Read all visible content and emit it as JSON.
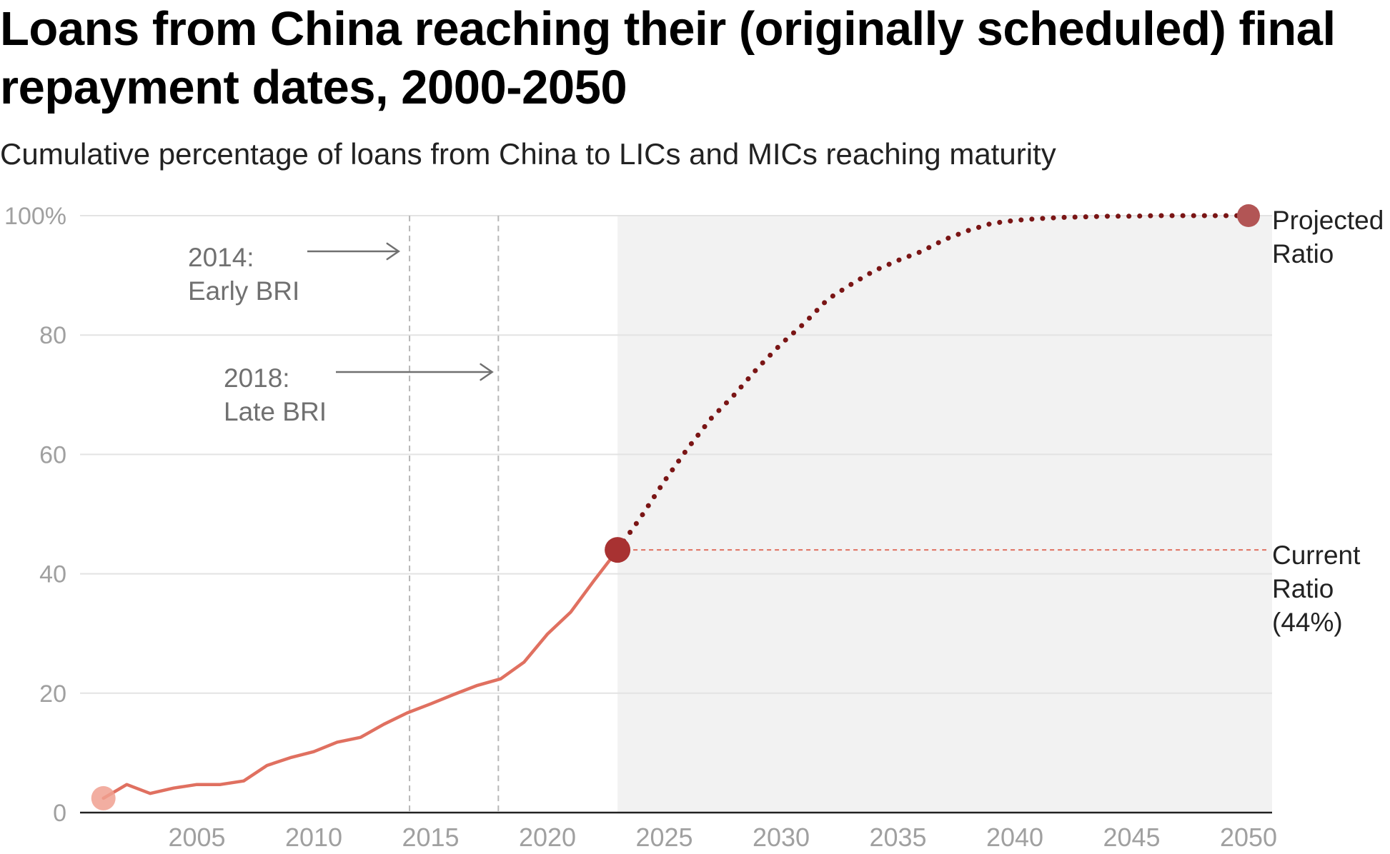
{
  "title": "Loans from China reaching their (originally scheduled) final repayment dates, 2000-2050",
  "subtitle": "Cumulative percentage of loans from China to LICs and MICs reaching maturity",
  "colors": {
    "historical": "#e07060",
    "projected": "#7a1515",
    "current_marker": "#a83232",
    "start_marker": "#f0a090",
    "end_marker": "#b25555",
    "current_ratio_line": "#e07060",
    "shade": "#f2f2f2",
    "grid": "#e3e3e3",
    "axis_text": "#a0a0a0",
    "annotation": "#707070"
  },
  "chart_data": {
    "type": "line",
    "title": "Loans from China reaching their (originally scheduled) final repayment dates, 2000-2050",
    "subtitle": "Cumulative percentage of loans from China to LICs and MICs reaching maturity",
    "xlabel": "",
    "ylabel": "",
    "xlim": [
      2000,
      2051
    ],
    "ylim": [
      0,
      100
    ],
    "x_ticks": [
      {
        "value": 2005,
        "label": "2005"
      },
      {
        "value": 2010,
        "label": "2010"
      },
      {
        "value": 2015,
        "label": "2015"
      },
      {
        "value": 2020,
        "label": "2020"
      },
      {
        "value": 2025,
        "label": "2025"
      },
      {
        "value": 2030,
        "label": "2030"
      },
      {
        "value": 2035,
        "label": "2035"
      },
      {
        "value": 2040,
        "label": "2040"
      },
      {
        "value": 2045,
        "label": "2045"
      },
      {
        "value": 2050,
        "label": "2050"
      }
    ],
    "y_ticks": [
      {
        "value": 0,
        "label": "0"
      },
      {
        "value": 20,
        "label": "20"
      },
      {
        "value": 40,
        "label": "40"
      },
      {
        "value": 60,
        "label": "60"
      },
      {
        "value": 80,
        "label": "80"
      },
      {
        "value": 100,
        "label": "100%"
      }
    ],
    "grid": true,
    "projection_shading_from": 2023,
    "series": [
      {
        "style": "solid",
        "x": [
          2001,
          2002,
          2003,
          2004,
          2005,
          2006,
          2007,
          2008,
          2009,
          2010,
          2011,
          2012,
          2013,
          2014,
          2015,
          2016,
          2017,
          2018,
          2019,
          2020,
          2021,
          2022,
          2023
        ],
        "y": [
          2.4,
          4.7,
          3.2,
          4.1,
          4.7,
          4.7,
          5.3,
          7.9,
          9.2,
          10.2,
          11.8,
          12.6,
          14.8,
          16.7,
          18.2,
          19.8,
          21.3,
          22.4,
          25.2,
          29.9,
          33.6,
          38.9,
          44.0
        ]
      },
      {
        "style": "dotted",
        "x": [
          2023,
          2024,
          2025,
          2026,
          2027,
          2028,
          2029,
          2030,
          2031,
          2032,
          2033,
          2034,
          2035,
          2036,
          2037,
          2038,
          2039,
          2040,
          2041,
          2042,
          2043,
          2044,
          2045,
          2046,
          2047,
          2048,
          2049,
          2050
        ],
        "y": [
          44.0,
          49.5,
          55.5,
          61.0,
          66.0,
          70.0,
          74.5,
          78.5,
          82.0,
          86.0,
          88.5,
          90.8,
          92.5,
          94.0,
          96.0,
          97.5,
          98.7,
          99.2,
          99.5,
          99.7,
          99.8,
          99.9,
          99.9,
          100.0,
          100.0,
          100.0,
          100.0,
          100.0
        ]
      }
    ],
    "markers": [
      {
        "x": 2001,
        "y": 2.4,
        "kind": "start"
      },
      {
        "x": 2023,
        "y": 44.0,
        "kind": "current"
      },
      {
        "x": 2050,
        "y": 100.0,
        "kind": "end"
      }
    ],
    "reference_lines": [
      {
        "orientation": "vertical",
        "x": 2014.1
      },
      {
        "orientation": "vertical",
        "x": 2017.9
      },
      {
        "orientation": "horizontal",
        "y": 44,
        "x_from": 2023
      }
    ],
    "annotations": [
      {
        "text_lines": [
          "2014:",
          "Early BRI"
        ],
        "arrow_to_x": 2014
      },
      {
        "text_lines": [
          "2018:",
          "Late BRI"
        ],
        "arrow_to_x": 2018
      },
      {
        "text_lines": [
          "Projected",
          "Ratio"
        ],
        "anchor": "end-marker"
      },
      {
        "text_lines": [
          "Current",
          "Ratio",
          "(44%)"
        ],
        "anchor": "current-ratio-line"
      }
    ]
  }
}
